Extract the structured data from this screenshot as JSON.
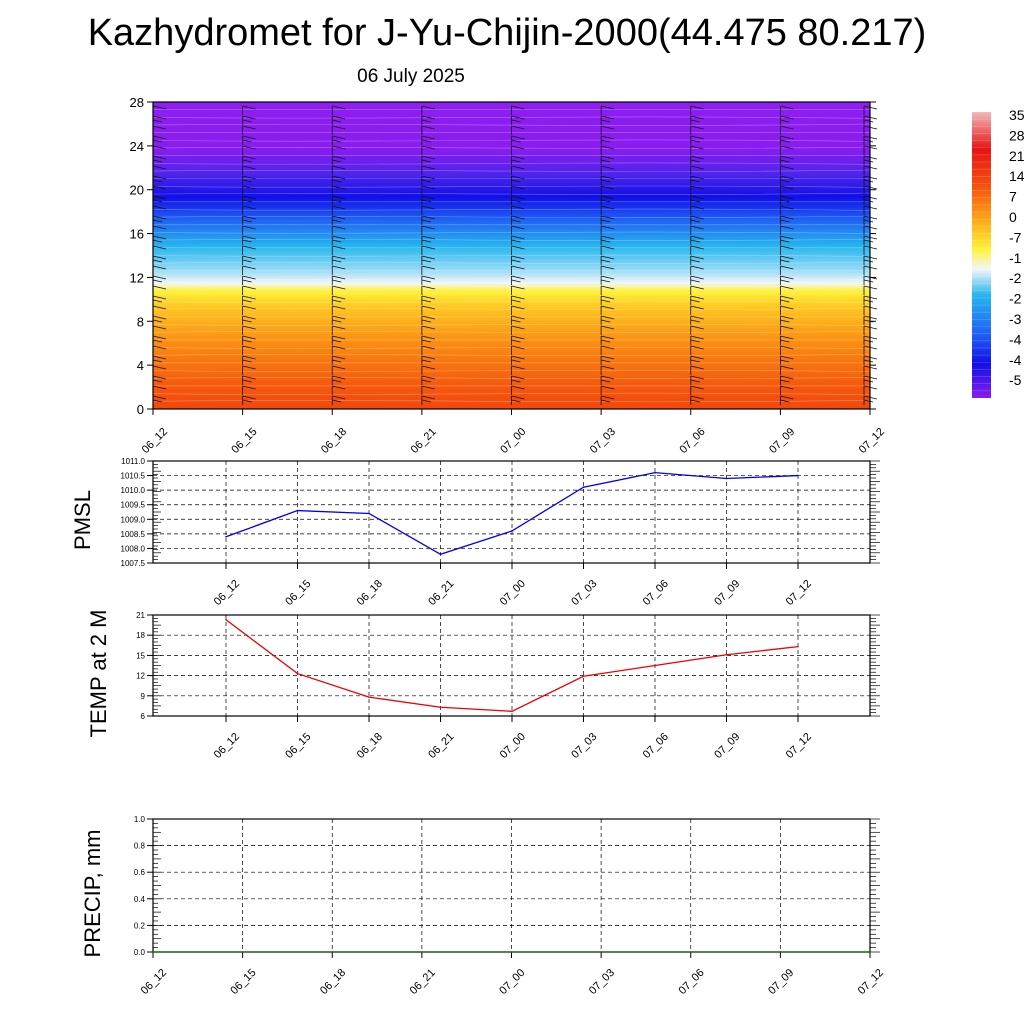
{
  "header": {
    "title": "Kazhydromet for J-Yu-Chijin-2000(44.475 80.217)",
    "subtitle": "06 July 2025"
  },
  "chart_data": [
    {
      "type": "heatmap",
      "name": "vertical-cross-section",
      "title": "",
      "ylim": [
        0,
        28
      ],
      "yticks": [
        "0",
        "4",
        "8",
        "12",
        "16",
        "20",
        "24",
        "28"
      ],
      "xticks": [
        "06_12",
        "06_15",
        "06_18",
        "06_21",
        "07_00",
        "07_03",
        "07_06",
        "07_09",
        "07_12"
      ],
      "colorbar_labels": [
        "35",
        "28",
        "21",
        "14",
        "7",
        "0",
        "-7",
        "-1",
        "-2",
        "-2",
        "-3",
        "-4",
        "-4",
        "-5"
      ],
      "colors": {
        "warm_low": "#f2470c",
        "warm_mid": "#fb9a12",
        "yellow": "#fef23a",
        "white": "#f2f6fa",
        "cyan": "#26b6ee",
        "blue": "#1f5ef4",
        "deep_blue": "#1010e6",
        "violet": "#8a1cf0"
      },
      "overlay": "wind barbs"
    },
    {
      "type": "line",
      "name": "pmsl",
      "ylabel": "PMSL",
      "ylim": [
        1007.5,
        1011.0
      ],
      "yticks": [
        "1007.5",
        "1008.0",
        "1008.5",
        "1009.0",
        "1009.5",
        "1010.0",
        "1010.5",
        "1011.0"
      ],
      "categories": [
        "06_12",
        "06_15",
        "06_18",
        "06_21",
        "07_00",
        "07_03",
        "07_06",
        "07_09",
        "07_12"
      ],
      "values": [
        1008.4,
        1009.3,
        1009.2,
        1007.8,
        1008.6,
        1010.1,
        1010.6,
        1010.4,
        1010.5
      ],
      "color": "#0000ee"
    },
    {
      "type": "line",
      "name": "temp",
      "ylabel": "TEMP at 2 M",
      "ylim": [
        6,
        21
      ],
      "yticks": [
        "6",
        "9",
        "12",
        "15",
        "18",
        "21"
      ],
      "categories": [
        "06_12",
        "06_15",
        "06_18",
        "06_21",
        "07_00",
        "07_03",
        "07_06",
        "07_09",
        "07_12"
      ],
      "values": [
        20.3,
        12.3,
        8.8,
        7.3,
        6.7,
        11.9,
        13.5,
        15.1,
        16.3
      ],
      "color": "#ee0000"
    },
    {
      "type": "line",
      "name": "precip",
      "ylabel": "PRECIP, mm",
      "ylim": [
        0.0,
        1.0
      ],
      "yticks": [
        "0.0",
        "0.2",
        "0.4",
        "0.6",
        "0.8",
        "1.0"
      ],
      "xticks": [
        "06_12",
        "06_15",
        "06_18",
        "06_21",
        "07_00",
        "07_03",
        "07_06",
        "07_09",
        "07_12"
      ],
      "values": [
        0,
        0,
        0,
        0,
        0,
        0,
        0,
        0,
        0
      ],
      "color": "#006600"
    }
  ]
}
